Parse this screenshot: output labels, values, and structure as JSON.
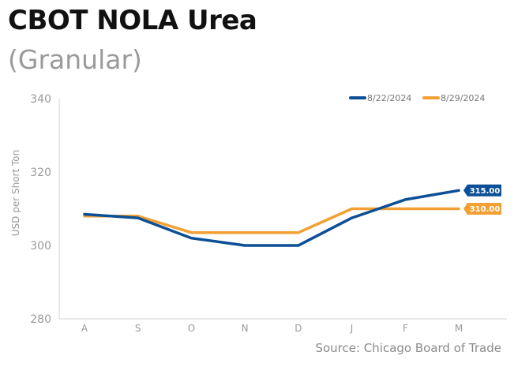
{
  "header": {
    "title": "CBOT NOLA Urea",
    "subtitle": "(Granular)"
  },
  "footer": {
    "source": "Source: Chicago Board of Trade"
  },
  "chart_data": {
    "type": "line",
    "title": "CBOT NOLA Urea",
    "subtitle": "(Granular)",
    "xlabel": "",
    "ylabel": "USD per Short Ton",
    "categories": [
      "A",
      "S",
      "O",
      "N",
      "D",
      "J",
      "F",
      "M"
    ],
    "ylim": [
      280,
      340
    ],
    "yticks": [
      280,
      300,
      320,
      340
    ],
    "grid": false,
    "legend_position": "top-right",
    "series": [
      {
        "name": "8/22/2024",
        "color": "#0b4f96",
        "values": [
          308.5,
          307.5,
          302.0,
          300.0,
          300.0,
          307.5,
          312.5,
          315.0
        ],
        "end_label": "315.00"
      },
      {
        "name": "8/29/2024",
        "color": "#f2a033",
        "values": [
          308.0,
          308.0,
          303.5,
          303.5,
          303.5,
          310.0,
          310.0,
          310.0
        ],
        "end_label": "310.00"
      }
    ]
  }
}
